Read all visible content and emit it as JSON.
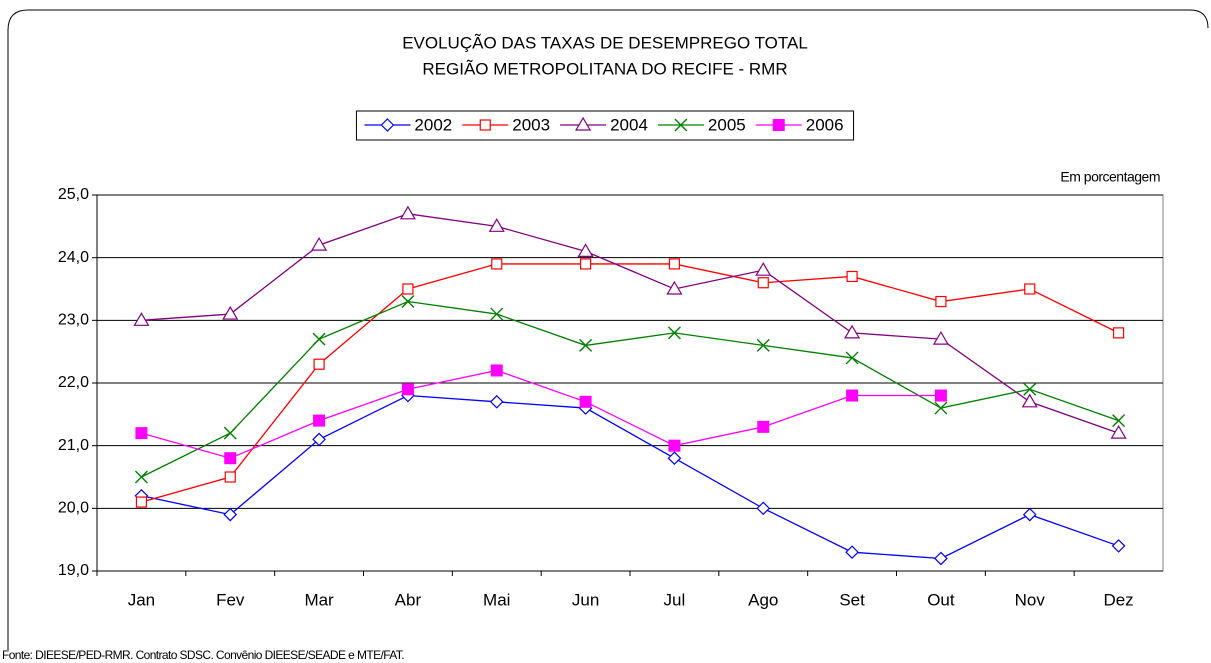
{
  "chart_data": {
    "type": "line",
    "title": "EVOLUÇÃO DAS TAXAS DE DESEMPREGO TOTAL",
    "subtitle": "REGIÃO METROPOLITANA DO RECIFE - RMR",
    "unit_note": "Em porcentagem",
    "source": "Fonte: DIEESE/PED-RMR. Contrato SDSC. Convênio DIEESE/SEADE e MTE/FAT.",
    "categories": [
      "Jan",
      "Fev",
      "Mar",
      "Abr",
      "Mai",
      "Jun",
      "Jul",
      "Ago",
      "Set",
      "Out",
      "Nov",
      "Dez"
    ],
    "series": [
      {
        "name": "2002",
        "color": "#0000ff",
        "marker": "diamond",
        "values": [
          20.2,
          19.9,
          21.1,
          21.8,
          21.7,
          21.6,
          20.8,
          20.0,
          19.3,
          19.2,
          19.9,
          19.4
        ]
      },
      {
        "name": "2003",
        "color": "#ff0000",
        "marker": "square",
        "values": [
          20.1,
          20.5,
          22.3,
          23.5,
          23.9,
          23.9,
          23.9,
          23.6,
          23.7,
          23.3,
          23.5,
          22.8
        ]
      },
      {
        "name": "2004",
        "color": "#800080",
        "marker": "triangle",
        "values": [
          23.0,
          23.1,
          24.2,
          24.7,
          24.5,
          24.1,
          23.5,
          23.8,
          22.8,
          22.7,
          21.7,
          21.2
        ]
      },
      {
        "name": "2005",
        "color": "#008000",
        "marker": "x",
        "values": [
          20.5,
          21.2,
          22.7,
          23.3,
          23.1,
          22.6,
          22.8,
          22.6,
          22.4,
          21.6,
          21.9,
          21.4
        ]
      },
      {
        "name": "2006",
        "color": "#ff00ff",
        "marker": "filled-square",
        "values": [
          21.2,
          20.8,
          21.4,
          21.9,
          22.2,
          21.7,
          21.0,
          21.3,
          21.8,
          21.8,
          null,
          null
        ]
      }
    ],
    "ylim": [
      19,
      25
    ],
    "yticks": [
      {
        "value": 19,
        "label": "19,0"
      },
      {
        "value": 20,
        "label": "20,0"
      },
      {
        "value": 21,
        "label": "21,0"
      },
      {
        "value": 22,
        "label": "22,0"
      },
      {
        "value": 23,
        "label": "23,0"
      },
      {
        "value": 24,
        "label": "24,0"
      },
      {
        "value": 25,
        "label": "25,0"
      }
    ],
    "grid": true,
    "legend": "top"
  }
}
